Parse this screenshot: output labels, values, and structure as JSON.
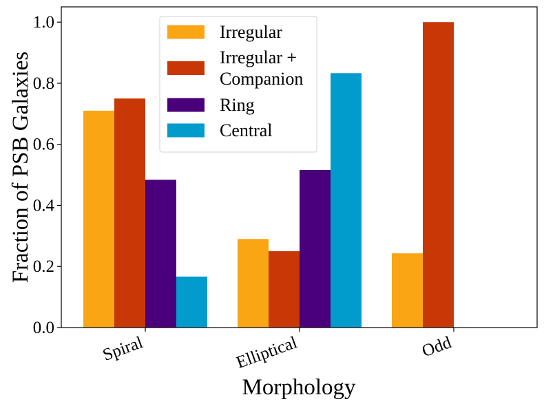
{
  "chart_data": {
    "type": "bar",
    "title": "",
    "xlabel": "Morphology",
    "ylabel": "Fraction of PSB Galaxies",
    "categories": [
      "Spiral",
      "Elliptical",
      "Odd"
    ],
    "series": [
      {
        "name": "Irregular",
        "color": "#f9a514",
        "values": [
          0.71,
          0.29,
          0.243
        ]
      },
      {
        "name": "Irregular + Companion",
        "legend_lines": [
          "Irregular +",
          "Companion"
        ],
        "color": "#c83806",
        "values": [
          0.75,
          0.25,
          1.0
        ]
      },
      {
        "name": "Ring",
        "color": "#4a007a",
        "values": [
          0.484,
          0.516,
          0.0
        ]
      },
      {
        "name": "Central",
        "color": "#029ccc",
        "values": [
          0.167,
          0.833,
          0.0
        ]
      }
    ],
    "ylim": [
      0,
      1.05
    ],
    "yticks": [
      0.0,
      0.2,
      0.4,
      0.6,
      0.8,
      1.0
    ],
    "ytick_labels": [
      "0.0",
      "0.2",
      "0.4",
      "0.6",
      "0.8",
      "1.0"
    ],
    "grid": false,
    "legend_position": "upper-center"
  }
}
